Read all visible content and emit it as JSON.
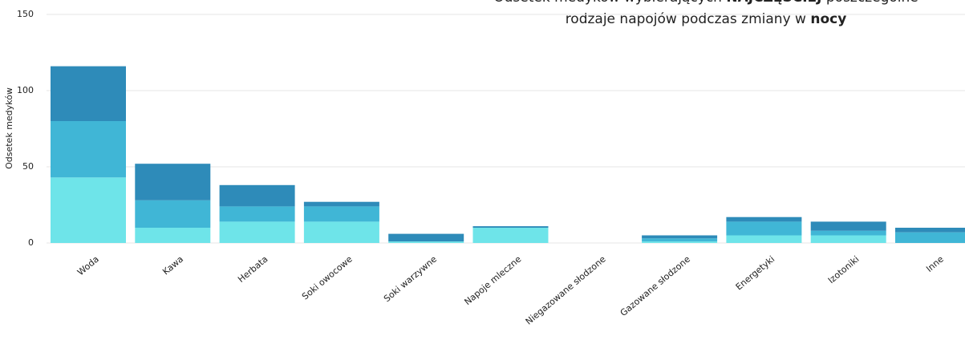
{
  "chart_data": {
    "type": "stacked_bar",
    "title": [
      [
        {
          "text": "Odsetek medyków wybierających ",
          "bold": false
        },
        {
          "text": "NAJCZĘŚCIEJ",
          "bold": true
        },
        {
          "text": " poszczególne",
          "bold": false
        }
      ],
      [
        {
          "text": "rodzaje napojów podczas zmiany w ",
          "bold": false
        },
        {
          "text": "nocy",
          "bold": true
        }
      ]
    ],
    "ylabel": "Odsetek medyków",
    "categories": [
      "Woda",
      "Kawa",
      "Herbata",
      "Soki owocowe",
      "Soki warzywne",
      "Napoje mleczne",
      "Niegazowane słodzone",
      "Gazowane słodzone",
      "Energetyki",
      "Izotoniki",
      "Inne"
    ],
    "series": [
      {
        "color": "#6ee4e9",
        "values": [
          43,
          10,
          14,
          14,
          1,
          10,
          0,
          1,
          5,
          5,
          0
        ]
      },
      {
        "color": "#40b6d6",
        "values": [
          37,
          18,
          10,
          10,
          0,
          0,
          0,
          2,
          9,
          3,
          7
        ]
      },
      {
        "color": "#2e8bb9",
        "values": [
          36,
          24,
          14,
          3,
          5,
          1,
          0,
          2,
          3,
          6,
          3
        ]
      }
    ],
    "ylim": [
      0,
      150
    ],
    "yticks": [
      0,
      50,
      100,
      150
    ],
    "grid": true
  }
}
